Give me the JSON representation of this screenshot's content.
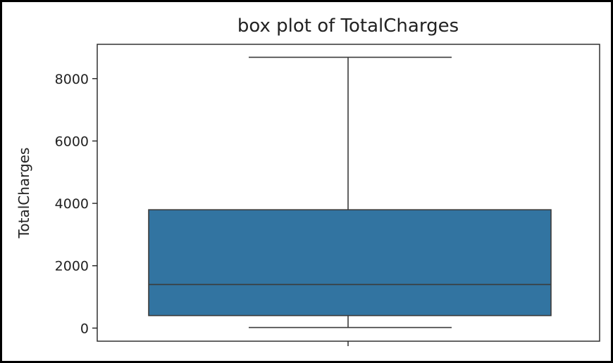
{
  "chart_data": {
    "type": "box",
    "title": "box plot of TotalCharges",
    "xlabel": "",
    "ylabel": "TotalCharges",
    "ylim": [
      -420,
      9100
    ],
    "yticks": [
      0,
      2000,
      4000,
      6000,
      8000
    ],
    "grid": false,
    "box": {
      "whisker_low": 18.8,
      "q1": 401.4,
      "median": 1397.5,
      "q3": 3794.7,
      "whisker_high": 8684.8
    },
    "colors": {
      "box_fill": "#3274a1",
      "line": "#3b3b3b",
      "axes": "#222222"
    }
  }
}
